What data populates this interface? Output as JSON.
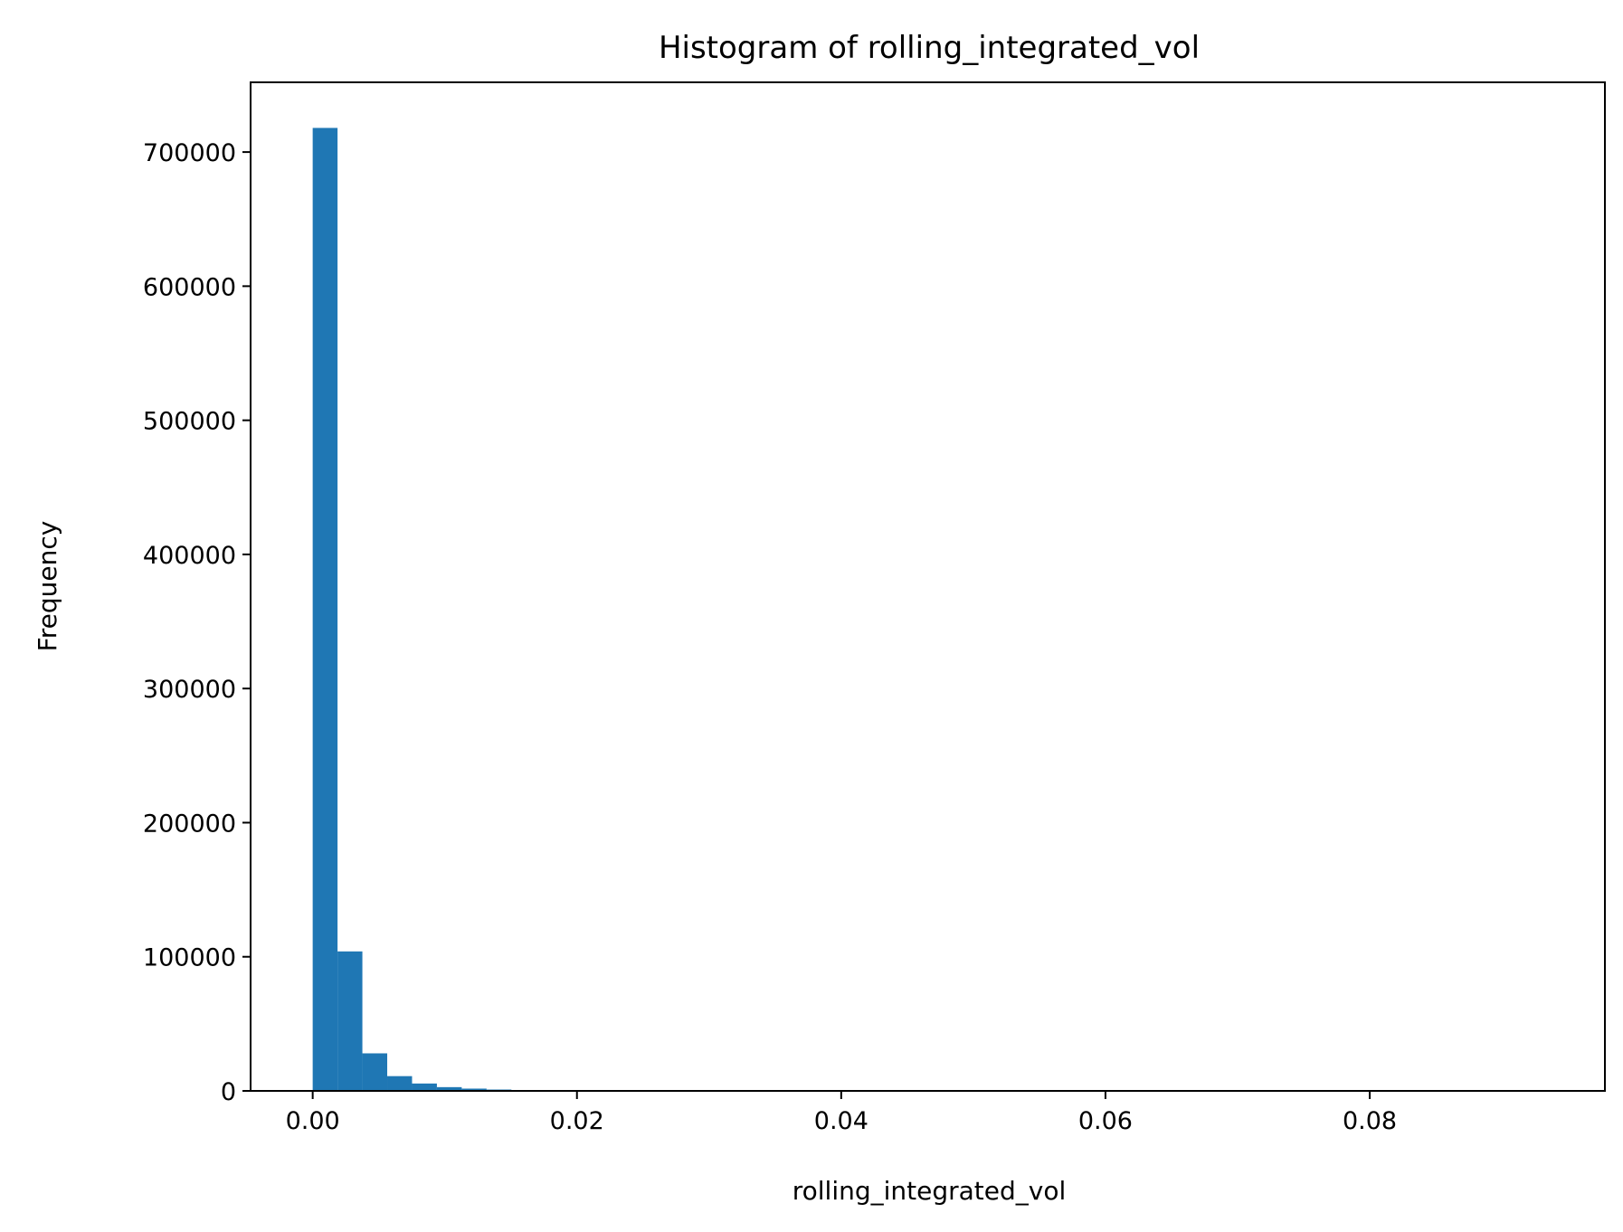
{
  "chart_data": {
    "type": "bar",
    "title": "Histogram of rolling_integrated_vol",
    "xlabel": "rolling_integrated_vol",
    "ylabel": "Frequency",
    "xlim": [
      -0.0047,
      0.0978
    ],
    "ylim": [
      0,
      752000
    ],
    "grid": false,
    "legend": "none",
    "bar_color": "#1f77b4",
    "xticks": [
      {
        "value": 0.0,
        "label": "0.00"
      },
      {
        "value": 0.02,
        "label": "0.02"
      },
      {
        "value": 0.04,
        "label": "0.04"
      },
      {
        "value": 0.06,
        "label": "0.06"
      },
      {
        "value": 0.08,
        "label": "0.08"
      }
    ],
    "yticks": [
      {
        "value": 0,
        "label": "0"
      },
      {
        "value": 100000,
        "label": "100000"
      },
      {
        "value": 200000,
        "label": "200000"
      },
      {
        "value": 300000,
        "label": "300000"
      },
      {
        "value": 400000,
        "label": "400000"
      },
      {
        "value": 500000,
        "label": "500000"
      },
      {
        "value": 600000,
        "label": "600000"
      },
      {
        "value": 700000,
        "label": "700000"
      }
    ],
    "bin_start": 0.0,
    "bin_width": 0.00188,
    "values": [
      718000,
      104000,
      28000,
      11000,
      5500,
      2800,
      1700,
      1000,
      600,
      350,
      220,
      150,
      100,
      70,
      50,
      40,
      30,
      25,
      20,
      15,
      12,
      10,
      8,
      7,
      6,
      5,
      4,
      4,
      3,
      3,
      3,
      2,
      2,
      2,
      2,
      1,
      1,
      1,
      1,
      1,
      1,
      1,
      1,
      1,
      1,
      1,
      1,
      1,
      1,
      1
    ]
  }
}
